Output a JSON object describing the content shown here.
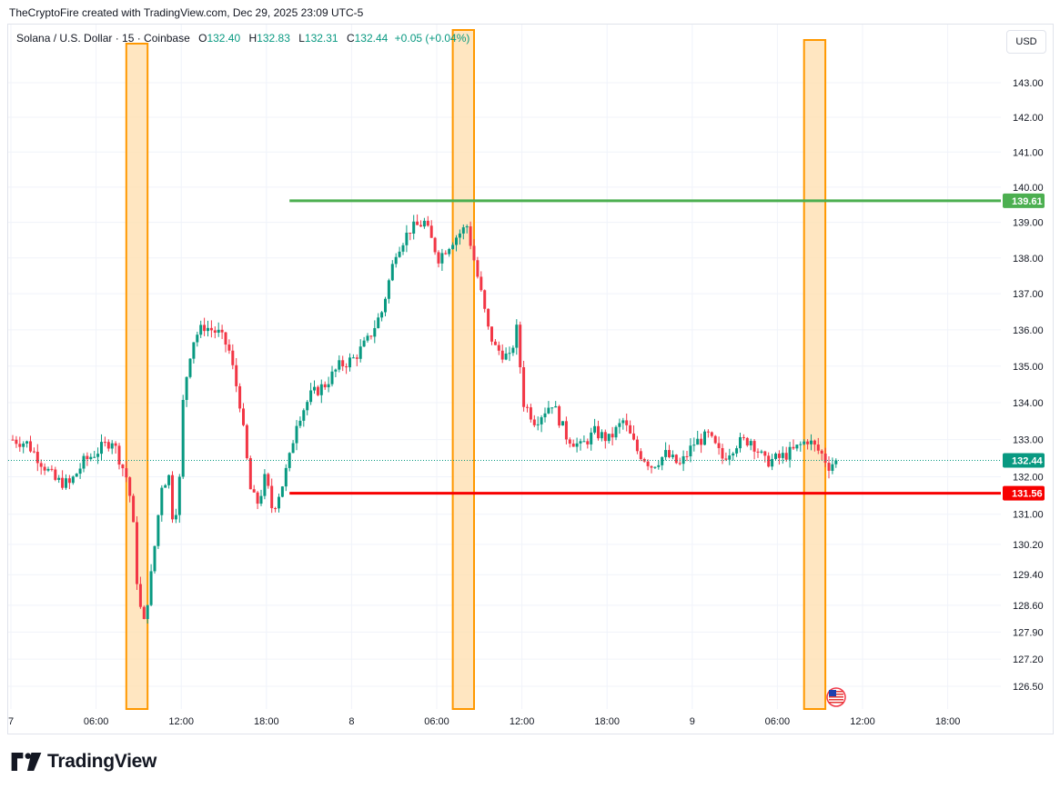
{
  "header": {
    "attribution": "TheCryptoFire created with TradingView.com, Dec 29, 2025 23:09 UTC-5"
  },
  "legend": {
    "symbol": "Solana / U.S. Dollar · 15 · Coinbase",
    "open_label": "O",
    "open": "132.40",
    "high_label": "H",
    "high": "132.83",
    "low_label": "L",
    "low": "132.31",
    "close_label": "C",
    "close": "132.44",
    "change": "+0.05 (+0.04%)"
  },
  "currency_button": "USD",
  "brand": {
    "name": "TradingView"
  },
  "colors": {
    "up": "#089981",
    "down": "#f23645",
    "resistance": "#4caf50",
    "support": "#f70000",
    "highlight_fill": "#ffe0b2",
    "highlight_border": "#ff9800",
    "grid": "#f0f3fa"
  },
  "chart_data": {
    "type": "candlestick",
    "title": "Solana / U.S. Dollar · 15 · Coinbase",
    "x_tick_labels": [
      "7",
      "06:00",
      "12:00",
      "18:00",
      "8",
      "06:00",
      "12:00",
      "18:00",
      "9",
      "06:00",
      "12:00",
      "18:00"
    ],
    "y_tick_labels": [
      "143.00",
      "142.00",
      "141.00",
      "140.00",
      "139.00",
      "138.00",
      "137.00",
      "136.00",
      "135.00",
      "134.00",
      "133.00",
      "132.00",
      "131.00",
      "130.20",
      "129.40",
      "128.60",
      "127.90",
      "127.20",
      "126.50"
    ],
    "y_tick_values": [
      143.0,
      142.0,
      141.0,
      140.0,
      139.0,
      138.0,
      137.0,
      136.0,
      135.0,
      134.0,
      133.0,
      132.0,
      131.0,
      130.2,
      129.4,
      128.6,
      127.9,
      127.2,
      126.5
    ],
    "y_scale": "log",
    "grid": true,
    "horizontal_levels": [
      {
        "name": "resistance",
        "value": 139.61,
        "label": "139.61",
        "from": "Dec 7 19:30"
      },
      {
        "name": "support",
        "value": 131.56,
        "label": "131.56",
        "from": "Dec 7 19:30"
      }
    ],
    "last_price": {
      "value": 132.44,
      "label": "132.44"
    },
    "highlight_zones": [
      {
        "from": "Dec 7 08:00",
        "to": "Dec 7 09:30"
      },
      {
        "from": "Dec 8 07:00",
        "to": "Dec 8 08:30"
      },
      {
        "from": "Dec 9 07:45",
        "to": "Dec 9 09:15"
      }
    ],
    "price_path_hours": [
      0,
      1,
      2,
      3,
      4,
      5,
      6,
      7,
      7.5,
      8,
      8.4,
      8.8,
      9.2,
      9.8,
      10.5,
      11,
      11.3,
      11.7,
      12,
      12.4,
      12.8,
      13.5,
      14.5,
      15.2,
      16,
      16.8,
      17.3,
      17.8,
      18.3,
      19,
      19.5,
      20,
      21,
      22,
      23,
      24,
      25,
      26,
      27,
      28,
      29,
      30,
      31,
      32,
      33,
      33.5,
      34,
      35,
      35.5,
      36,
      36.8,
      37.5,
      38,
      39,
      40,
      41,
      42,
      43,
      44,
      45,
      46,
      47,
      48,
      49,
      50,
      51,
      52,
      53,
      54,
      55,
      56,
      57,
      57.5,
      58
    ],
    "price_path_values": [
      133.0,
      132.9,
      132.4,
      131.9,
      131.8,
      132.4,
      132.7,
      133.0,
      132.5,
      132.0,
      131.2,
      129.0,
      128.0,
      129.5,
      131.8,
      132.0,
      130.8,
      131.5,
      134.0,
      135.2,
      135.8,
      136.1,
      135.9,
      135.5,
      134.0,
      131.5,
      131.3,
      132.0,
      131.1,
      131.8,
      132.5,
      133.5,
      134.2,
      134.5,
      135.0,
      135.2,
      135.7,
      136.5,
      138.2,
      138.8,
      139.0,
      138.0,
      138.5,
      138.9,
      137.0,
      136.0,
      135.5,
      135.2,
      136.0,
      134.0,
      133.5,
      133.8,
      134.0,
      133.1,
      132.8,
      133.2,
      133.0,
      133.5,
      132.7,
      132.3,
      132.6,
      132.3,
      132.9,
      133.1,
      132.5,
      132.9,
      133.0,
      132.4,
      132.5,
      132.7,
      133.0,
      132.6,
      132.3,
      132.44
    ]
  }
}
